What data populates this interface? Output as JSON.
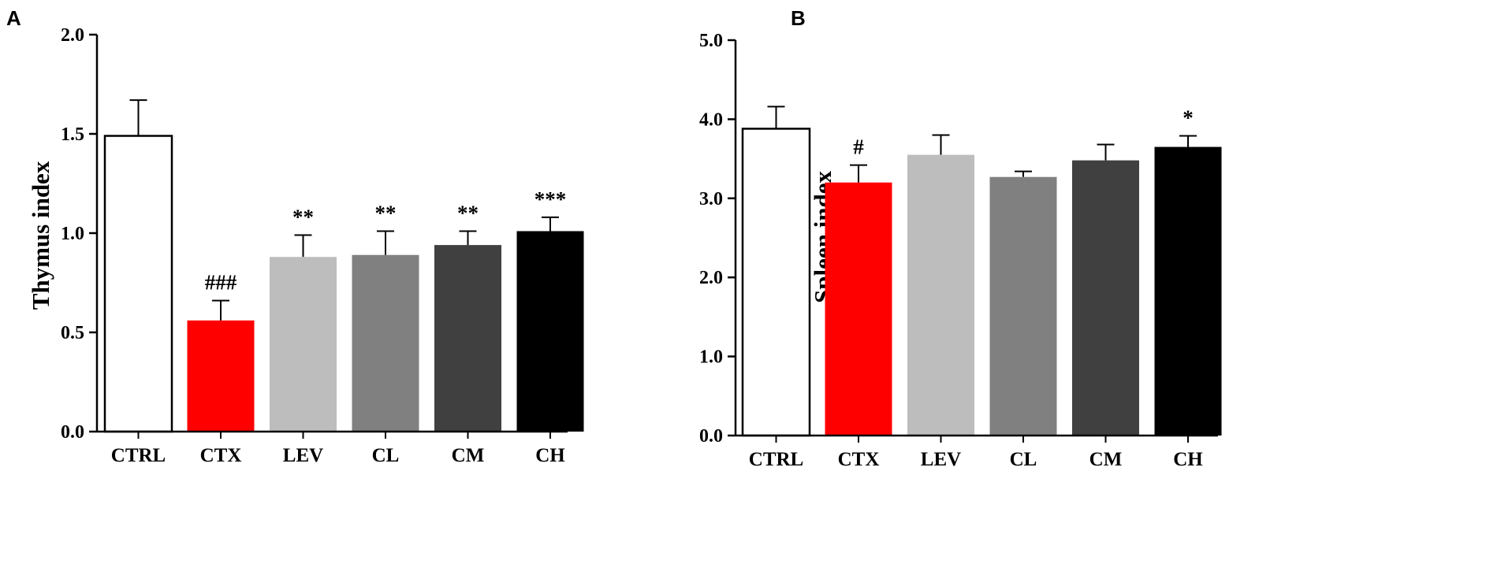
{
  "chart_data": [
    {
      "panel": "A",
      "type": "bar",
      "title": "",
      "xlabel": "",
      "ylabel": "Thymus index",
      "ylim": [
        0,
        2.0
      ],
      "yticks": [
        "0.0",
        "0.5",
        "1.0",
        "1.5",
        "2.0"
      ],
      "categories": [
        "CTRL",
        "CTX",
        "LEV",
        "CL",
        "CM",
        "CH"
      ],
      "values": [
        1.49,
        0.56,
        0.88,
        0.89,
        0.94,
        1.01
      ],
      "errors": [
        0.18,
        0.1,
        0.11,
        0.12,
        0.07,
        0.07
      ],
      "annotations": [
        "",
        "###",
        "**",
        "**",
        "**",
        "***"
      ],
      "colors": [
        "#ffffff",
        "#ff0000",
        "#bdbdbd",
        "#808080",
        "#404040",
        "#000000"
      ]
    },
    {
      "panel": "B",
      "type": "bar",
      "title": "",
      "xlabel": "",
      "ylabel": "Spleen index",
      "ylim": [
        0,
        5.0
      ],
      "yticks": [
        "0.0",
        "1.0",
        "2.0",
        "3.0",
        "4.0",
        "5.0"
      ],
      "categories": [
        "CTRL",
        "CTX",
        "LEV",
        "CL",
        "CM",
        "CH"
      ],
      "values": [
        3.88,
        3.2,
        3.55,
        3.27,
        3.48,
        3.65
      ],
      "errors": [
        0.28,
        0.22,
        0.25,
        0.07,
        0.2,
        0.14
      ],
      "annotations": [
        "",
        "#",
        "",
        "",
        "",
        "*"
      ],
      "colors": [
        "#ffffff",
        "#ff0000",
        "#bdbdbd",
        "#808080",
        "#404040",
        "#000000"
      ]
    }
  ]
}
